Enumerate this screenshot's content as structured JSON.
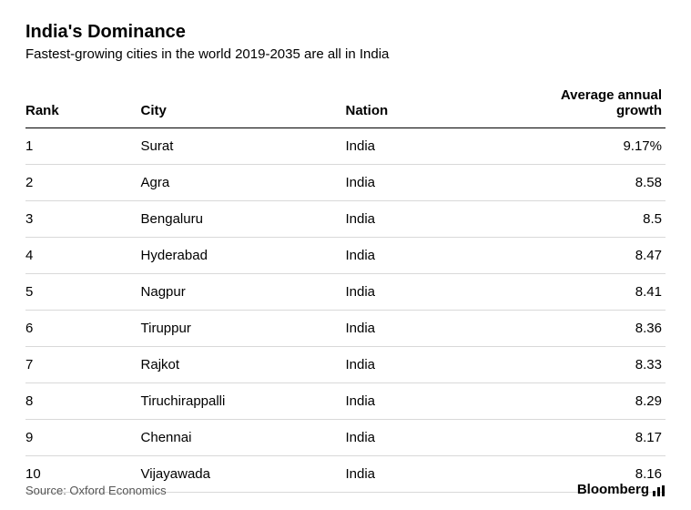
{
  "title": "India's Dominance",
  "subtitle": "Fastest-growing cities in the world 2019-2035 are all in India",
  "table": {
    "type": "table",
    "columns": [
      "Rank",
      "City",
      "Nation",
      "Average annual growth"
    ],
    "col_align": [
      "left",
      "left",
      "left",
      "right"
    ],
    "rows": [
      [
        "1",
        "Surat",
        "India",
        "9.17%"
      ],
      [
        "2",
        "Agra",
        "India",
        "8.58"
      ],
      [
        "3",
        "Bengaluru",
        "India",
        "8.5"
      ],
      [
        "4",
        "Hyderabad",
        "India",
        "8.47"
      ],
      [
        "5",
        "Nagpur",
        "India",
        "8.41"
      ],
      [
        "6",
        "Tiruppur",
        "India",
        "8.36"
      ],
      [
        "7",
        "Rajkot",
        "India",
        "8.33"
      ],
      [
        "8",
        "Tiruchirappalli",
        "India",
        "8.29"
      ],
      [
        "9",
        "Chennai",
        "India",
        "8.17"
      ],
      [
        "10",
        "Vijayawada",
        "India",
        "8.16"
      ]
    ],
    "header_border_color": "#000000",
    "row_border_color": "#d9d9d9",
    "header_fontsize": 15,
    "body_fontsize": 15,
    "background_color": "#ffffff"
  },
  "source_label": "Source: Oxford Economics",
  "brand": "Bloomberg"
}
